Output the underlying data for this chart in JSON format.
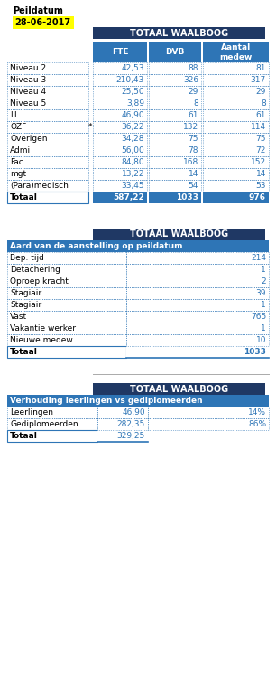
{
  "peildatum_line1": "Peildatum",
  "peildatum_line2": "28-06-2017",
  "peildatum_bg": "#FFFF00",
  "title_bg": "#1F3864",
  "title_color": "#FFFFFF",
  "header_bg": "#2E75B6",
  "header_color": "#FFFFFF",
  "data_color": "#2E75B6",
  "border_color": "#2E75B6",
  "table1_title": "TOTAAL WAALBOOG",
  "table1_headers": [
    "FTE",
    "DVB",
    "Aantal\nmedew"
  ],
  "table1_rows": [
    [
      "Niveau 2",
      "42,53",
      "88",
      "81"
    ],
    [
      "Niveau 3",
      "210,43",
      "326",
      "317"
    ],
    [
      "Niveau 4",
      "25,50",
      "29",
      "29"
    ],
    [
      "Niveau 5",
      "3,89",
      "8",
      "8"
    ],
    [
      "LL",
      "46,90",
      "61",
      "61"
    ],
    [
      "OZF",
      "36,22",
      "132",
      "114"
    ],
    [
      "Overigen",
      "34,28",
      "75",
      "75"
    ],
    [
      "Admi",
      "56,00",
      "78",
      "72"
    ],
    [
      "Fac",
      "84,80",
      "168",
      "152"
    ],
    [
      "mgt",
      "13,22",
      "14",
      "14"
    ],
    [
      "(Para)medisch",
      "33,45",
      "54",
      "53"
    ]
  ],
  "table1_total": [
    "Totaal",
    "587,22",
    "1033",
    "976"
  ],
  "table2_title": "TOTAAL WAALBOOG",
  "table2_subtitle": "Aard van de aanstelling op peildatum",
  "table2_rows": [
    [
      "Bep. tijd",
      "214"
    ],
    [
      "Detachering",
      "1"
    ],
    [
      "Oproep kracht",
      "2"
    ],
    [
      "Stagiair",
      "39"
    ],
    [
      "Stagiair",
      "1"
    ],
    [
      "Vast",
      "765"
    ],
    [
      "Vakantie werker",
      "1"
    ],
    [
      "Nieuwe medew.",
      "10"
    ]
  ],
  "table2_total": [
    "Totaal",
    "1033"
  ],
  "table3_title": "TOTAAL WAALBOOG",
  "table3_subtitle": "Verhouding leerlingen vs gediplomeerden",
  "table3_rows": [
    [
      "Leerlingen",
      "46,90",
      "14%"
    ],
    [
      "Gediplomeerden",
      "282,35",
      "86%"
    ]
  ],
  "table3_total": [
    "Totaal",
    "329,25",
    ""
  ]
}
